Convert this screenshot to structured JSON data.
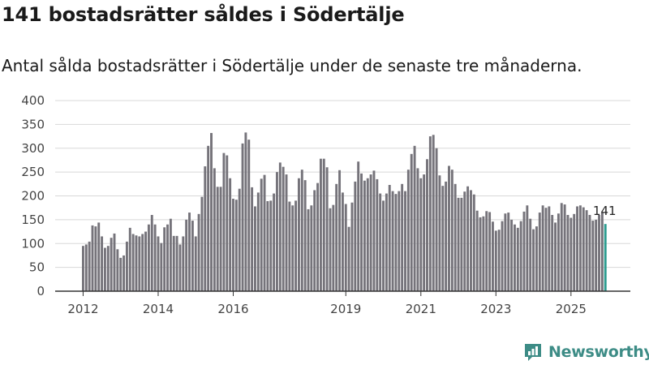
{
  "headline": "141 bostadsrätter såldes i Södertälje",
  "subtitle": "Antal sålda bostadsrätter i Södertälje under de senaste tre månaderna.",
  "brand": {
    "name": "Newsworthy"
  },
  "colors": {
    "bar": "#75737a",
    "highlight": "#2b9b8e",
    "grid": "#d8d8d8",
    "brand": "#3d8c86"
  },
  "chart_data": {
    "type": "bar",
    "title": "141 bostadsrätter såldes i Södertälje",
    "subtitle": "Antal sålda bostadsrätter i Södertälje under de senaste tre månaderna.",
    "xlabel": "",
    "ylabel": "",
    "ylim": [
      0,
      400
    ],
    "yticks": [
      0,
      50,
      100,
      150,
      200,
      250,
      300,
      350,
      400
    ],
    "grid": true,
    "first_month": "2012-01",
    "xtick_labels": [
      {
        "label": "2012",
        "index": 0
      },
      {
        "label": "2014",
        "index": 24
      },
      {
        "label": "2016",
        "index": 48
      },
      {
        "label": "2019",
        "index": 84
      },
      {
        "label": "2021",
        "index": 108
      },
      {
        "label": "2023",
        "index": 132
      },
      {
        "label": "2025",
        "index": 156
      }
    ],
    "highlight": {
      "label": "141",
      "value": 141
    },
    "values": [
      95,
      98,
      104,
      138,
      136,
      144,
      115,
      91,
      95,
      112,
      121,
      88,
      70,
      75,
      104,
      133,
      120,
      117,
      115,
      120,
      125,
      140,
      160,
      140,
      115,
      101,
      134,
      140,
      152,
      116,
      116,
      98,
      115,
      150,
      165,
      148,
      115,
      162,
      198,
      262,
      305,
      332,
      258,
      219,
      219,
      290,
      285,
      237,
      194,
      192,
      215,
      310,
      333,
      318,
      218,
      178,
      207,
      236,
      244,
      189,
      190,
      205,
      250,
      270,
      261,
      245,
      188,
      180,
      190,
      237,
      255,
      233,
      172,
      180,
      212,
      227,
      278,
      278,
      260,
      174,
      181,
      225,
      254,
      207,
      183,
      135,
      186,
      230,
      272,
      247,
      232,
      237,
      245,
      253,
      235,
      205,
      190,
      205,
      223,
      210,
      204,
      210,
      225,
      210,
      255,
      288,
      305,
      258,
      237,
      245,
      277,
      325,
      328,
      300,
      243,
      221,
      230,
      263,
      255,
      225,
      196,
      196,
      209,
      220,
      212,
      203,
      169,
      155,
      157,
      168,
      166,
      146,
      127,
      129,
      147,
      163,
      165,
      150,
      140,
      133,
      147,
      167,
      180,
      152,
      130,
      136,
      165,
      180,
      175,
      178,
      160,
      144,
      163,
      185,
      182,
      160,
      154,
      162,
      178,
      180,
      176,
      170,
      160,
      148,
      150,
      160,
      165,
      141
    ]
  }
}
